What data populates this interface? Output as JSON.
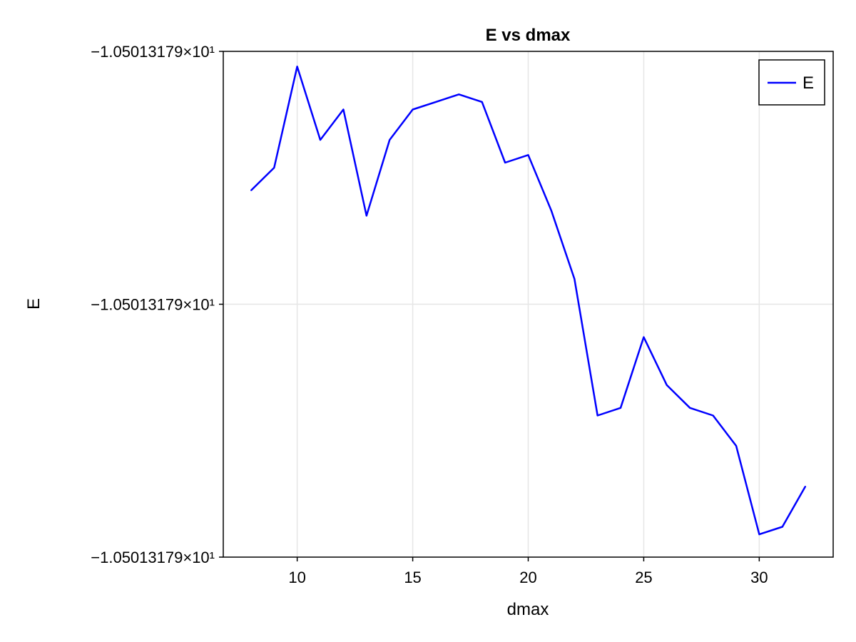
{
  "chart_data": {
    "type": "line",
    "title": "E vs dmax",
    "xlabel": "dmax",
    "ylabel": "E",
    "x_ticks": [
      10,
      15,
      20,
      25,
      30
    ],
    "x_tick_labels": [
      "10",
      "15",
      "20",
      "25",
      "30"
    ],
    "y_ticks": [
      0,
      1,
      2
    ],
    "y_tick_labels": [
      "−1.05013179×10¹",
      "−1.05013179×10¹",
      "−1.05013179×10¹"
    ],
    "xlim": [
      6.8,
      33.2
    ],
    "ylim": [
      0,
      2
    ],
    "y_unit_note": "",
    "grid": true,
    "legend_position": "top-right",
    "series": [
      {
        "name": "E",
        "color": "#0000ff",
        "x": [
          8,
          9,
          10,
          11,
          12,
          13,
          14,
          15,
          16,
          17,
          18,
          19,
          20,
          21,
          22,
          23,
          24,
          25,
          26,
          27,
          28,
          29,
          30,
          31,
          32
        ],
        "y": [
          1.45,
          1.54,
          1.94,
          1.65,
          1.77,
          1.35,
          1.65,
          1.77,
          1.8,
          1.83,
          1.8,
          1.56,
          1.59,
          1.37,
          1.1,
          0.56,
          0.59,
          0.87,
          0.68,
          0.59,
          0.56,
          0.44,
          0.09,
          0.12,
          0.28
        ]
      }
    ]
  }
}
